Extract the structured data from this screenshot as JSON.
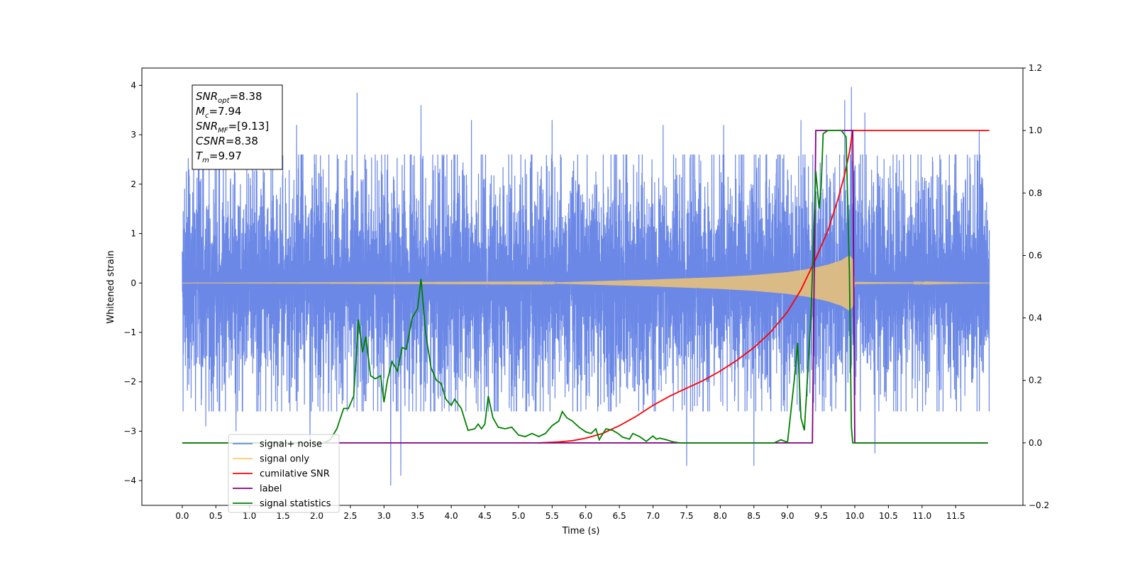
{
  "chart_data": {
    "type": "line",
    "xlabel": "Time (s)",
    "ylabel": "Whitened strain",
    "xlim": [
      -0.6,
      12.5
    ],
    "ylim": [
      -4.5,
      4.35
    ],
    "y2lim": [
      -0.2,
      1.2
    ],
    "x_ticks": [
      "0.0",
      "0.5",
      "1.0",
      "1.5",
      "2.0",
      "2.5",
      "3.0",
      "3.5",
      "4.0",
      "4.5",
      "5.0",
      "5.5",
      "6.0",
      "6.5",
      "7.0",
      "7.5",
      "8.0",
      "8.5",
      "9.0",
      "9.5",
      "10.0",
      "10.5",
      "11.0",
      "11.5"
    ],
    "y_ticks": [
      "4",
      "3",
      "2",
      "1",
      "0",
      "−1",
      "−2",
      "−3",
      "−4"
    ],
    "y2_ticks": [
      "1.2",
      "1.0",
      "0.8",
      "0.6",
      "0.4",
      "0.2",
      "0.0",
      "−0.2"
    ],
    "info_box": {
      "lines": [
        {
          "sym": "SNR",
          "sub": "opt",
          "val": "=8.38"
        },
        {
          "sym": "M",
          "sub": "c",
          "val": "=7.94"
        },
        {
          "sym": "SNR",
          "sub": "MF",
          "val": "=[9.13]"
        },
        {
          "sym": "CSNR",
          "sub": "",
          "val": "=8.38"
        },
        {
          "sym": "T",
          "sub": "m",
          "val": "=9.97"
        }
      ]
    },
    "legend": {
      "placement": "lower-left",
      "entries": [
        {
          "label": "signal+ noise",
          "color": "#6b88e6"
        },
        {
          "label": "signal only",
          "color": "#ffcc66"
        },
        {
          "label": "cumilative SNR",
          "color": "#ff0000"
        },
        {
          "label": "label",
          "color": "#800080"
        },
        {
          "label": "signal statistics",
          "color": "#008000"
        }
      ]
    },
    "series": [
      {
        "name": "signal+ noise",
        "axis": "left",
        "color": "#6b88e6",
        "x_range": [
          0.0,
          12.0
        ],
        "typical_amplitude": 1.6,
        "peaks": [
          [
            0.1,
            2.3
          ],
          [
            0.2,
            -1.5
          ],
          [
            0.25,
            2.5
          ],
          [
            0.35,
            -2.9
          ],
          [
            0.8,
            -3.0
          ],
          [
            1.1,
            3.4
          ],
          [
            1.7,
            3.2
          ],
          [
            1.9,
            -3.2
          ],
          [
            2.6,
            3.85
          ],
          [
            2.65,
            -2.0
          ],
          [
            3.1,
            -4.1
          ],
          [
            3.25,
            -3.9
          ],
          [
            3.55,
            3.6
          ],
          [
            4.3,
            3.3
          ],
          [
            5.5,
            3.3
          ],
          [
            7.15,
            3.2
          ],
          [
            7.5,
            -3.7
          ],
          [
            8.05,
            3.2
          ],
          [
            8.5,
            -3.7
          ],
          [
            9.2,
            3.3
          ],
          [
            9.85,
            3.7
          ],
          [
            9.95,
            3.97
          ],
          [
            10.15,
            3.45
          ],
          [
            10.3,
            -3.45
          ],
          [
            11.85,
            3.1
          ]
        ]
      },
      {
        "name": "signal only",
        "axis": "left",
        "color": "#ffcc66",
        "envelope": [
          [
            0.0,
            0.0
          ],
          [
            5.5,
            0.01
          ],
          [
            6.0,
            0.03
          ],
          [
            7.0,
            0.07
          ],
          [
            8.0,
            0.12
          ],
          [
            8.5,
            0.16
          ],
          [
            9.0,
            0.22
          ],
          [
            9.3,
            0.28
          ],
          [
            9.6,
            0.37
          ],
          [
            9.8,
            0.46
          ],
          [
            9.92,
            0.56
          ],
          [
            9.97,
            0.48
          ],
          [
            10.0,
            0.02
          ],
          [
            12.0,
            0.0
          ]
        ]
      },
      {
        "name": "cumilative SNR",
        "axis": "right",
        "color": "#ff0000",
        "points": [
          [
            5.3,
            0.0
          ],
          [
            5.6,
            0.003
          ],
          [
            5.8,
            0.007
          ],
          [
            6.0,
            0.015
          ],
          [
            6.25,
            0.03
          ],
          [
            6.5,
            0.055
          ],
          [
            6.75,
            0.085
          ],
          [
            7.0,
            0.12
          ],
          [
            7.25,
            0.15
          ],
          [
            7.5,
            0.175
          ],
          [
            7.75,
            0.2
          ],
          [
            8.0,
            0.23
          ],
          [
            8.25,
            0.265
          ],
          [
            8.5,
            0.305
          ],
          [
            8.75,
            0.355
          ],
          [
            9.0,
            0.42
          ],
          [
            9.2,
            0.49
          ],
          [
            9.4,
            0.58
          ],
          [
            9.6,
            0.68
          ],
          [
            9.75,
            0.78
          ],
          [
            9.85,
            0.86
          ],
          [
            9.92,
            0.93
          ],
          [
            9.97,
            1.0
          ],
          [
            12.0,
            1.0
          ]
        ]
      },
      {
        "name": "label",
        "axis": "right",
        "color": "#800080",
        "points": [
          [
            0.0,
            0.0
          ],
          [
            9.37,
            0.0
          ],
          [
            9.42,
            1.0
          ],
          [
            9.97,
            1.0
          ],
          [
            10.0,
            0.0
          ],
          [
            11.98,
            0.0
          ]
        ]
      },
      {
        "name": "signal statistics",
        "axis": "right",
        "color": "#008000",
        "points": [
          [
            0.0,
            0.0
          ],
          [
            2.1,
            0.0
          ],
          [
            2.2,
            0.01
          ],
          [
            2.3,
            0.045
          ],
          [
            2.4,
            0.11
          ],
          [
            2.47,
            0.11
          ],
          [
            2.55,
            0.15
          ],
          [
            2.62,
            0.395
          ],
          [
            2.68,
            0.29
          ],
          [
            2.73,
            0.34
          ],
          [
            2.8,
            0.215
          ],
          [
            2.87,
            0.205
          ],
          [
            2.95,
            0.215
          ],
          [
            3.0,
            0.13
          ],
          [
            3.05,
            0.2
          ],
          [
            3.12,
            0.26
          ],
          [
            3.2,
            0.23
          ],
          [
            3.27,
            0.305
          ],
          [
            3.33,
            0.3
          ],
          [
            3.42,
            0.4
          ],
          [
            3.5,
            0.43
          ],
          [
            3.55,
            0.525
          ],
          [
            3.62,
            0.35
          ],
          [
            3.7,
            0.24
          ],
          [
            3.78,
            0.2
          ],
          [
            3.85,
            0.19
          ],
          [
            3.92,
            0.14
          ],
          [
            4.0,
            0.12
          ],
          [
            4.05,
            0.14
          ],
          [
            4.15,
            0.11
          ],
          [
            4.25,
            0.04
          ],
          [
            4.35,
            0.045
          ],
          [
            4.4,
            0.06
          ],
          [
            4.45,
            0.045
          ],
          [
            4.5,
            0.06
          ],
          [
            4.55,
            0.15
          ],
          [
            4.62,
            0.08
          ],
          [
            4.7,
            0.05
          ],
          [
            4.8,
            0.045
          ],
          [
            4.9,
            0.05
          ],
          [
            5.0,
            0.025
          ],
          [
            5.1,
            0.02
          ],
          [
            5.2,
            0.03
          ],
          [
            5.3,
            0.02
          ],
          [
            5.4,
            0.03
          ],
          [
            5.5,
            0.055
          ],
          [
            5.6,
            0.07
          ],
          [
            5.65,
            0.1
          ],
          [
            5.72,
            0.08
          ],
          [
            5.8,
            0.07
          ],
          [
            5.9,
            0.05
          ],
          [
            6.0,
            0.035
          ],
          [
            6.08,
            0.03
          ],
          [
            6.15,
            0.045
          ],
          [
            6.2,
            0.01
          ],
          [
            6.3,
            0.045
          ],
          [
            6.4,
            0.04
          ],
          [
            6.48,
            0.03
          ],
          [
            6.55,
            0.018
          ],
          [
            6.65,
            0.012
          ],
          [
            6.7,
            0.03
          ],
          [
            6.8,
            0.02
          ],
          [
            6.9,
            0.005
          ],
          [
            7.0,
            0.022
          ],
          [
            7.05,
            0.012
          ],
          [
            7.1,
            0.015
          ],
          [
            7.2,
            0.01
          ],
          [
            7.3,
            0.003
          ],
          [
            7.4,
            0.0
          ],
          [
            8.8,
            0.0
          ],
          [
            8.9,
            0.01
          ],
          [
            9.0,
            0.002
          ],
          [
            9.05,
            0.1
          ],
          [
            9.1,
            0.2
          ],
          [
            9.15,
            0.32
          ],
          [
            9.2,
            0.08
          ],
          [
            9.25,
            0.04
          ],
          [
            9.3,
            0.22
          ],
          [
            9.35,
            0.42
          ],
          [
            9.42,
            0.87
          ],
          [
            9.47,
            0.75
          ],
          [
            9.5,
            0.82
          ],
          [
            9.53,
            0.99
          ],
          [
            9.6,
            1.0
          ],
          [
            9.7,
            1.0
          ],
          [
            9.8,
            1.0
          ],
          [
            9.87,
            0.98
          ],
          [
            9.92,
            0.55
          ],
          [
            9.95,
            0.05
          ],
          [
            9.97,
            0.0
          ],
          [
            11.98,
            0.0
          ]
        ]
      }
    ]
  }
}
